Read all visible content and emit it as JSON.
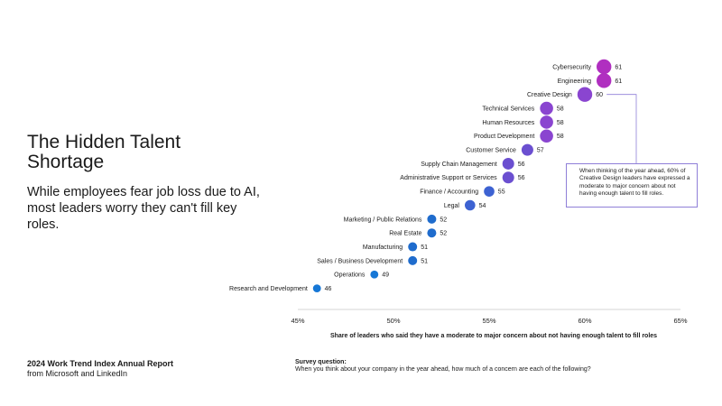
{
  "page": {
    "title": "The Hidden Talent Shortage",
    "subtitle": "While employees fear job loss due to AI, most leaders worry they can't fill key roles.",
    "report_title": "2024 Work Trend Index Annual Report",
    "report_source": "from Microsoft and LinkedIn",
    "survey_label": "Survey question:",
    "survey_question": "When you think about your company in the year ahead, how much of a concern are each of the following?",
    "callout_text": "When thinking of the year ahead, 60% of Creative Design leaders have expressed a moderate to major concern about not having enough talent to fill roles."
  },
  "chart_data": {
    "type": "scatter",
    "title": "The Hidden Talent Shortage",
    "xlabel": "Share of leaders who said they have a moderate to major concern about not having enough talent to fill roles",
    "ylabel": "",
    "xlim": [
      45,
      65
    ],
    "xticks": [
      "45%",
      "50%",
      "55%",
      "60%",
      "65%"
    ],
    "xtick_values": [
      45,
      50,
      55,
      60,
      65
    ],
    "categories": [
      "Cybersecurity",
      "Engineering",
      "Creative Design",
      "Technical Services",
      "Human Resources",
      "Product Development",
      "Customer Service",
      "Supply Chain Management",
      "Administrative Support or Services",
      "Finance / Accounting",
      "Legal",
      "Marketing / Public Relations",
      "Real Estate",
      "Manufacturing",
      "Sales / Business Development",
      "Operations",
      "Research and Development"
    ],
    "values": [
      61,
      61,
      60,
      58,
      58,
      58,
      57,
      56,
      56,
      55,
      54,
      52,
      52,
      51,
      51,
      49,
      46
    ],
    "colors": {
      "high": "#b02fc0",
      "upper": "#8a45d0",
      "mid": "#6b4fd0",
      "lower": "#3d62d2",
      "low": "#1f6ccd",
      "lowest": "#1677d6",
      "callout_border": "#8f7fd8",
      "axis": "#c8c8c8"
    },
    "highlight": "Creative Design"
  }
}
